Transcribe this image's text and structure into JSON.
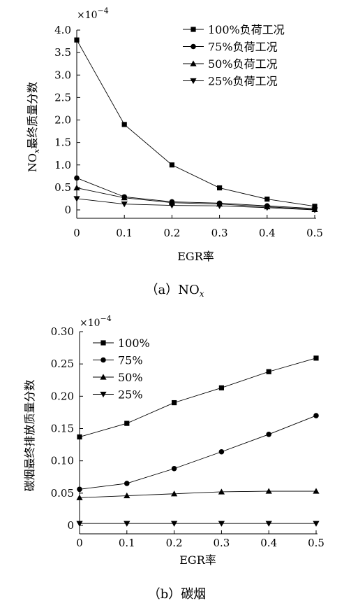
{
  "chart_data": [
    {
      "type": "line",
      "caption_prefix": "（a）NO",
      "caption_sub": "x",
      "ylabel_main": "NO",
      "ylabel_sub": "x",
      "ylabel_rest": "最终质量分数",
      "xlabel": "EGR率",
      "y_multiplier_base": "×10",
      "y_multiplier_exp": "−4",
      "xlim": [
        0,
        0.5
      ],
      "ylim": [
        0,
        4.0
      ],
      "x_ticks": [
        "0",
        "0.1",
        "0.2",
        "0.3",
        "0.4",
        "0.5"
      ],
      "y_ticks": [
        "0",
        "0.5",
        "1.0",
        "1.5",
        "2.0",
        "2.5",
        "3.0",
        "3.5",
        "4.0"
      ],
      "x": [
        0,
        0.1,
        0.2,
        0.3,
        0.4,
        0.5
      ],
      "legend_position": "top-right",
      "series": [
        {
          "name": "100%负荷工况",
          "marker": "square",
          "values": [
            3.78,
            1.9,
            1.0,
            0.49,
            0.24,
            0.08
          ]
        },
        {
          "name": "75%负荷工况",
          "marker": "circle",
          "values": [
            0.71,
            0.29,
            0.18,
            0.15,
            0.09,
            0.03
          ]
        },
        {
          "name": "50%负荷工况",
          "marker": "triangle-up",
          "values": [
            0.49,
            0.27,
            0.16,
            0.13,
            0.07,
            0.01
          ]
        },
        {
          "name": "25%负荷工况",
          "marker": "triangle-down",
          "values": [
            0.25,
            0.13,
            0.1,
            0.09,
            0.05,
            0.0
          ]
        }
      ]
    },
    {
      "type": "line",
      "caption_prefix": "（b）碳烟",
      "caption_sub": "",
      "ylabel_main": "碳烟最终排放质量分数",
      "ylabel_sub": "",
      "ylabel_rest": "",
      "xlabel": "EGR率",
      "y_multiplier_base": "×10",
      "y_multiplier_exp": "−4",
      "xlim": [
        0,
        0.5
      ],
      "ylim": [
        0,
        0.3
      ],
      "x_ticks": [
        "0",
        "0.1",
        "0.2",
        "0.3",
        "0.4",
        "0.5"
      ],
      "y_ticks": [
        "0",
        "0.05",
        "0.10",
        "0.15",
        "0.20",
        "0.25",
        "0.30"
      ],
      "x": [
        0,
        0.1,
        0.2,
        0.3,
        0.4,
        0.5
      ],
      "legend_position": "top-left",
      "series": [
        {
          "name": "100%",
          "marker": "square",
          "values": [
            0.137,
            0.158,
            0.19,
            0.213,
            0.238,
            0.259
          ]
        },
        {
          "name": "75%",
          "marker": "circle",
          "values": [
            0.056,
            0.065,
            0.088,
            0.114,
            0.141,
            0.17
          ]
        },
        {
          "name": "50%",
          "marker": "triangle-up",
          "values": [
            0.043,
            0.046,
            0.049,
            0.052,
            0.053,
            0.053
          ]
        },
        {
          "name": "25%",
          "marker": "triangle-down",
          "values": [
            0.003,
            0.003,
            0.003,
            0.003,
            0.003,
            0.003
          ]
        }
      ]
    }
  ]
}
